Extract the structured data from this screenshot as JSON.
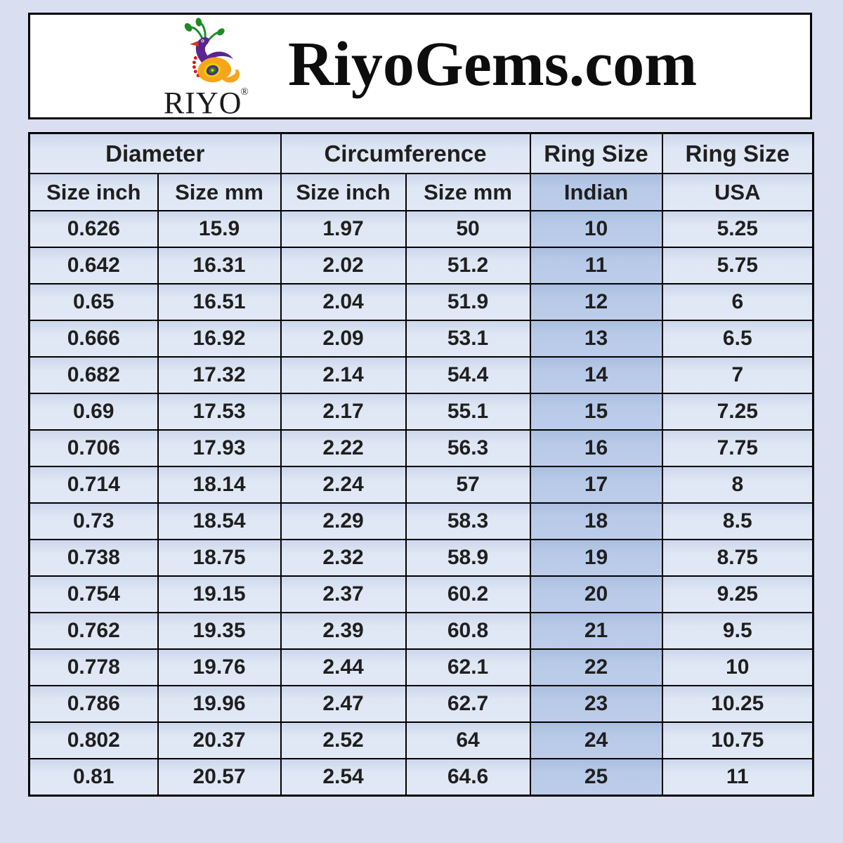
{
  "page": {
    "background_color": "#d9dff0"
  },
  "header": {
    "title": "RiyoGems.com",
    "logo": {
      "brand": "RIYO",
      "registered_mark": "®",
      "icon": "peacock-icon",
      "colors": {
        "crest_green": "#1f8a26",
        "neck_purple": "#5a2491",
        "beak_red": "#e03610",
        "body_orange": "#f6a51c",
        "dot_red": "#e51212",
        "eye_green": "#1f8a26",
        "eye_yellow": "#e8d400"
      }
    }
  },
  "table": {
    "column_groups": [
      {
        "label": "Diameter",
        "span": 2
      },
      {
        "label": "Circumference",
        "span": 2
      },
      {
        "label": "Ring Size",
        "span": 1
      },
      {
        "label": "Ring Size",
        "span": 1
      }
    ],
    "columns": [
      "Size inch",
      "Size mm",
      "Size inch",
      "Size mm",
      "Indian",
      "USA"
    ],
    "highlight_column": 4,
    "colors": {
      "cell_bg": "#dce4f3",
      "highlight_bg": "#b8cae8",
      "border": "#000000",
      "text": "#1f1f1f"
    },
    "rows": [
      [
        "0.626",
        "15.9",
        "1.97",
        "50",
        "10",
        "5.25"
      ],
      [
        "0.642",
        "16.31",
        "2.02",
        "51.2",
        "11",
        "5.75"
      ],
      [
        "0.65",
        "16.51",
        "2.04",
        "51.9",
        "12",
        "6"
      ],
      [
        "0.666",
        "16.92",
        "2.09",
        "53.1",
        "13",
        "6.5"
      ],
      [
        "0.682",
        "17.32",
        "2.14",
        "54.4",
        "14",
        "7"
      ],
      [
        "0.69",
        "17.53",
        "2.17",
        "55.1",
        "15",
        "7.25"
      ],
      [
        "0.706",
        "17.93",
        "2.22",
        "56.3",
        "16",
        "7.75"
      ],
      [
        "0.714",
        "18.14",
        "2.24",
        "57",
        "17",
        "8"
      ],
      [
        "0.73",
        "18.54",
        "2.29",
        "58.3",
        "18",
        "8.5"
      ],
      [
        "0.738",
        "18.75",
        "2.32",
        "58.9",
        "19",
        "8.75"
      ],
      [
        "0.754",
        "19.15",
        "2.37",
        "60.2",
        "20",
        "9.25"
      ],
      [
        "0.762",
        "19.35",
        "2.39",
        "60.8",
        "21",
        "9.5"
      ],
      [
        "0.778",
        "19.76",
        "2.44",
        "62.1",
        "22",
        "10"
      ],
      [
        "0.786",
        "19.96",
        "2.47",
        "62.7",
        "23",
        "10.25"
      ],
      [
        "0.802",
        "20.37",
        "2.52",
        "64",
        "24",
        "10.75"
      ],
      [
        "0.81",
        "20.57",
        "2.54",
        "64.6",
        "25",
        "11"
      ]
    ]
  },
  "chart_data": {
    "type": "table",
    "title": "RiyoGems.com ring size conversion chart",
    "column_groups": [
      "Diameter",
      "Diameter",
      "Circumference",
      "Circumference",
      "Ring Size",
      "Ring Size"
    ],
    "columns": [
      "Size inch",
      "Size mm",
      "Size inch",
      "Size mm",
      "Indian",
      "USA"
    ],
    "rows": [
      [
        0.626,
        15.9,
        1.97,
        50,
        10,
        5.25
      ],
      [
        0.642,
        16.31,
        2.02,
        51.2,
        11,
        5.75
      ],
      [
        0.65,
        16.51,
        2.04,
        51.9,
        12,
        6
      ],
      [
        0.666,
        16.92,
        2.09,
        53.1,
        13,
        6.5
      ],
      [
        0.682,
        17.32,
        2.14,
        54.4,
        14,
        7
      ],
      [
        0.69,
        17.53,
        2.17,
        55.1,
        15,
        7.25
      ],
      [
        0.706,
        17.93,
        2.22,
        56.3,
        16,
        7.75
      ],
      [
        0.714,
        18.14,
        2.24,
        57,
        17,
        8
      ],
      [
        0.73,
        18.54,
        2.29,
        58.3,
        18,
        8.5
      ],
      [
        0.738,
        18.75,
        2.32,
        58.9,
        19,
        8.75
      ],
      [
        0.754,
        19.15,
        2.37,
        60.2,
        20,
        9.25
      ],
      [
        0.762,
        19.35,
        2.39,
        60.8,
        21,
        9.5
      ],
      [
        0.778,
        19.76,
        2.44,
        62.1,
        22,
        10
      ],
      [
        0.786,
        19.96,
        2.47,
        62.7,
        23,
        10.25
      ],
      [
        0.802,
        20.37,
        2.52,
        64,
        24,
        10.75
      ],
      [
        0.81,
        20.57,
        2.54,
        64.6,
        25,
        11
      ]
    ]
  }
}
